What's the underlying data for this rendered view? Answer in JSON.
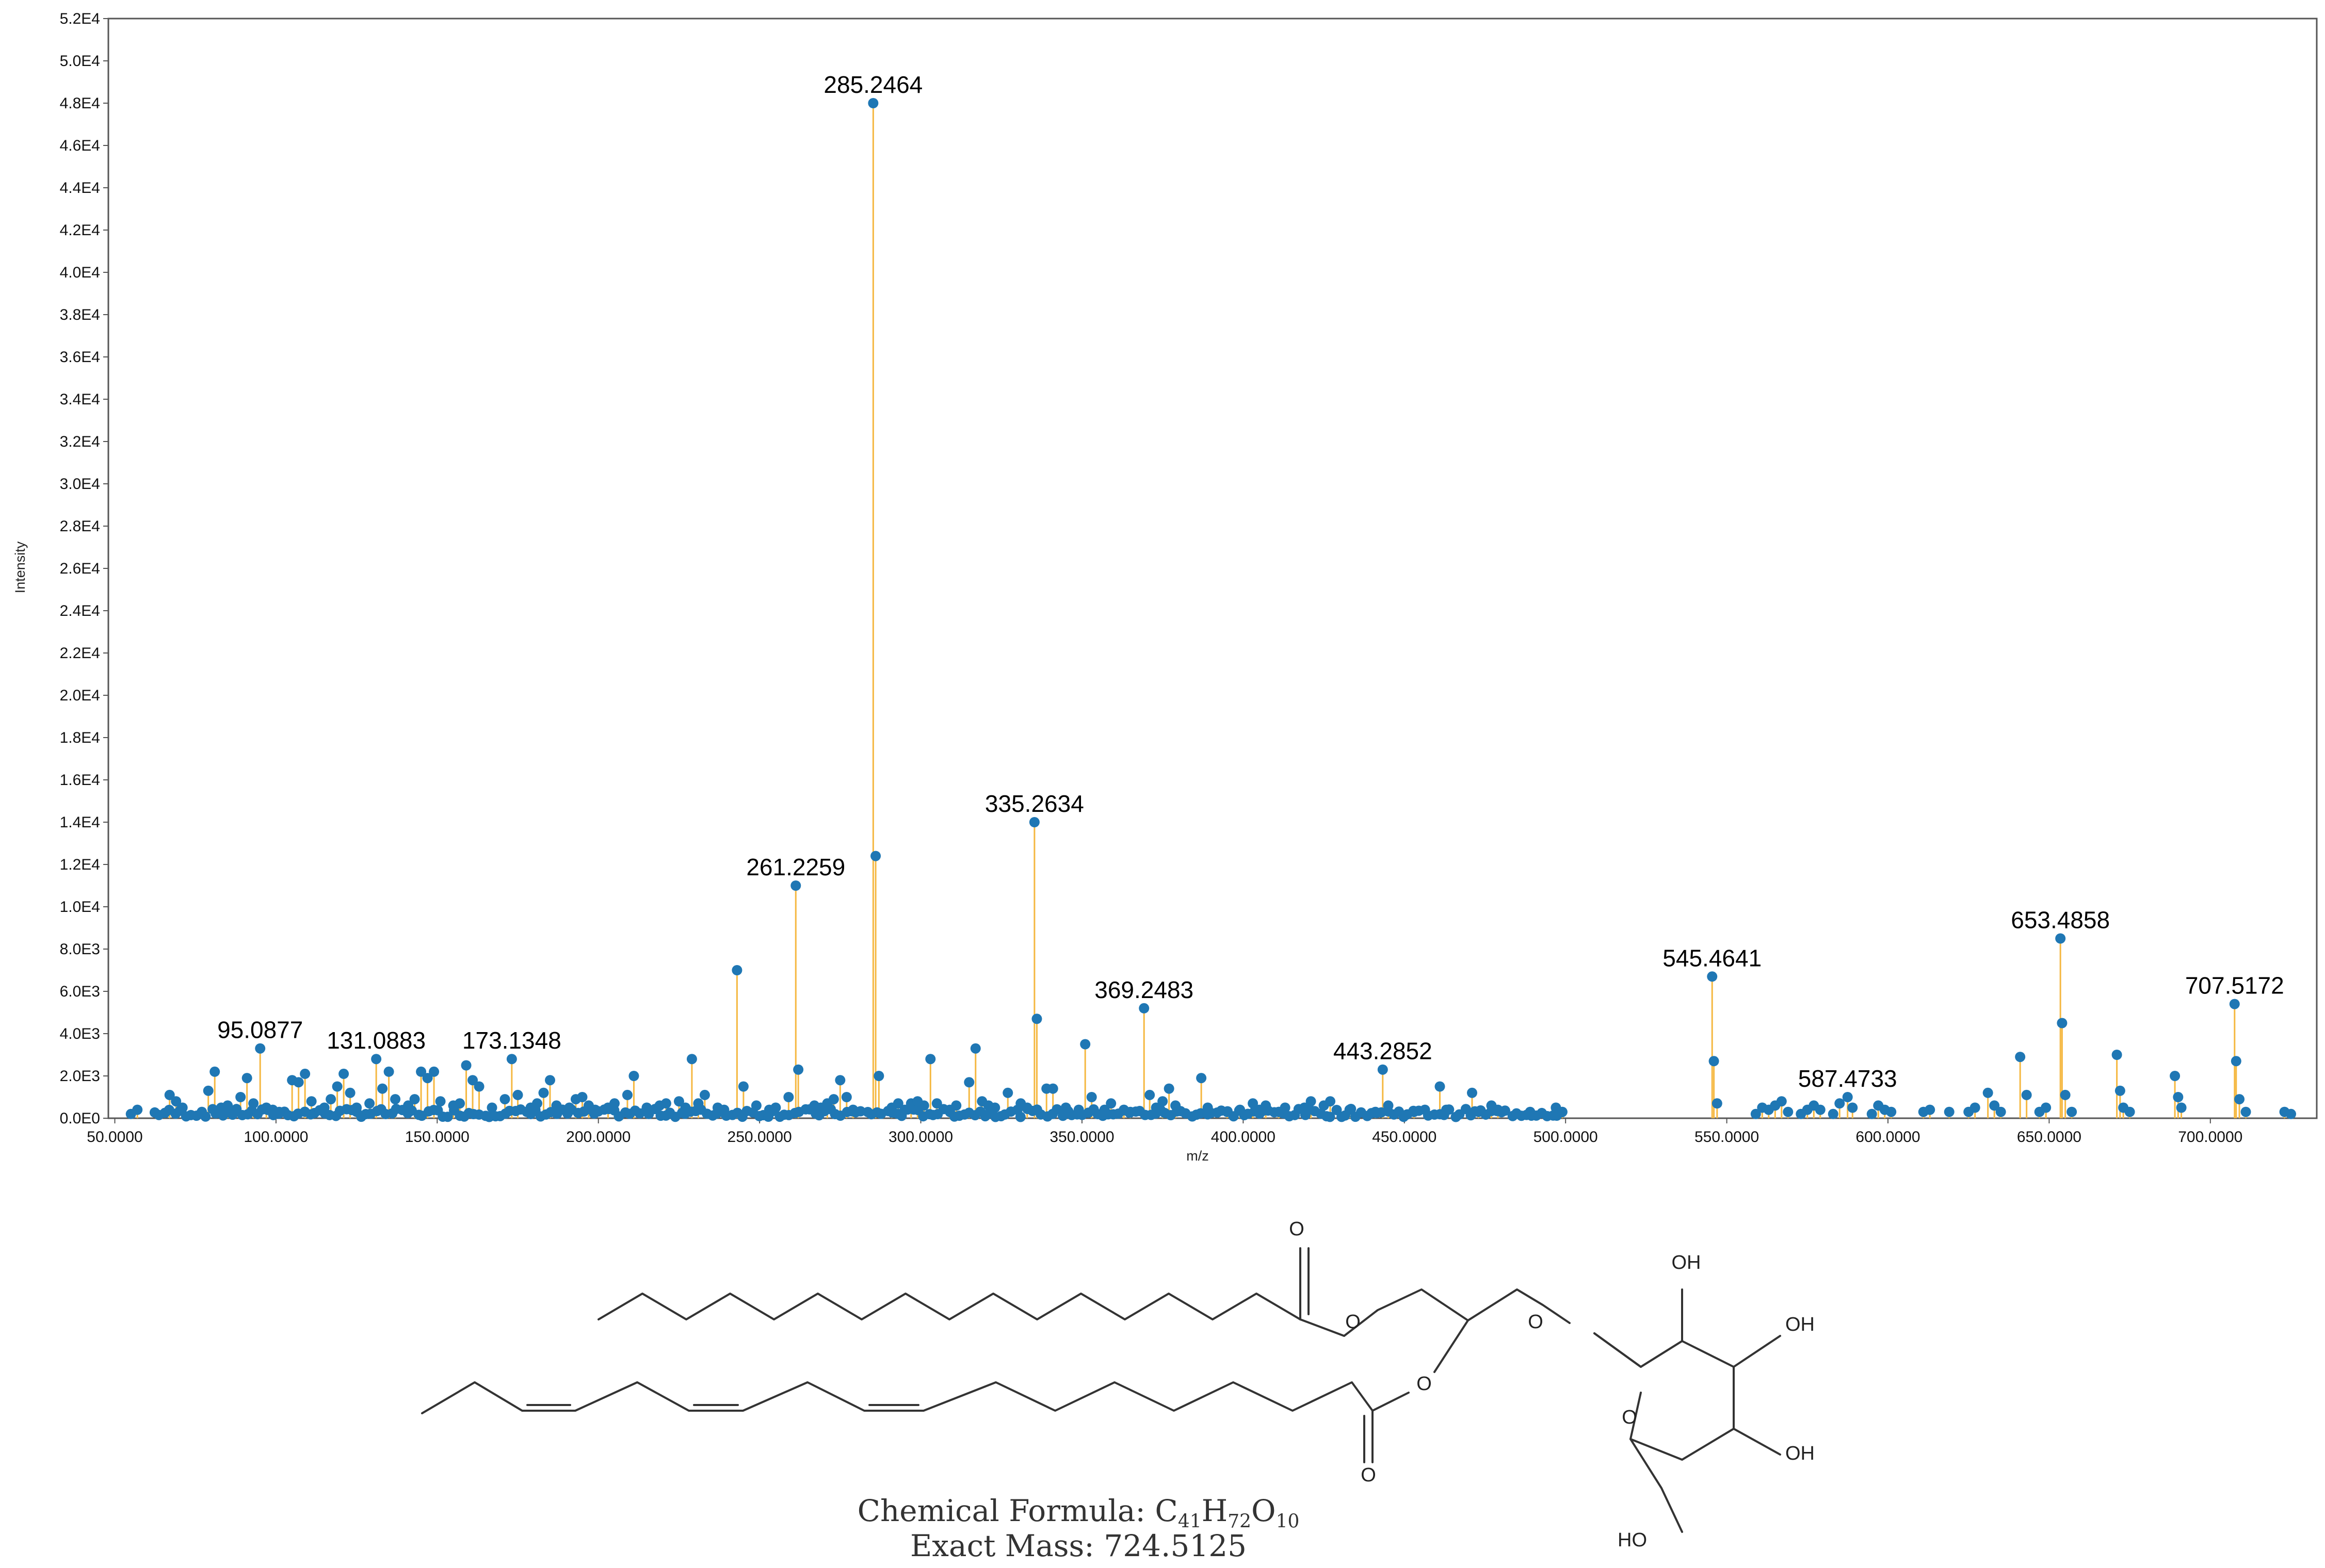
{
  "chart_data": {
    "type": "bar",
    "title": "",
    "xlabel": "m/z",
    "ylabel": "Intensity",
    "xlim": [
      48,
      733
    ],
    "ylim": [
      0,
      52000
    ],
    "x_ticks": [
      50,
      100,
      150,
      200,
      250,
      300,
      350,
      400,
      450,
      500,
      550,
      600,
      650,
      700
    ],
    "x_tick_labels": [
      "50.0000",
      "100.0000",
      "150.0000",
      "200.0000",
      "250.0000",
      "300.0000",
      "350.0000",
      "400.0000",
      "450.0000",
      "500.0000",
      "550.0000",
      "600.0000",
      "650.0000",
      "700.0000"
    ],
    "y_ticks": [
      0,
      2000,
      4000,
      6000,
      8000,
      10000,
      12000,
      14000,
      16000,
      18000,
      20000,
      22000,
      24000,
      26000,
      28000,
      30000,
      32000,
      34000,
      36000,
      38000,
      40000,
      42000,
      44000,
      46000,
      48000,
      50000,
      52000
    ],
    "y_tick_labels": [
      "0.0E0",
      "2.0E3",
      "4.0E3",
      "6.0E3",
      "8.0E3",
      "1.0E4",
      "1.2E4",
      "1.4E4",
      "1.6E4",
      "1.8E4",
      "2.0E4",
      "2.2E4",
      "2.4E4",
      "2.6E4",
      "2.8E4",
      "3.0E4",
      "3.2E4",
      "3.4E4",
      "3.6E4",
      "3.8E4",
      "4.0E4",
      "4.2E4",
      "4.4E4",
      "4.6E4",
      "4.8E4",
      "5.0E4",
      "5.2E4"
    ],
    "grid": false,
    "colors": {
      "stem": "#f5b841",
      "marker": "#1f77b4",
      "frame": "#555555"
    },
    "labeled_peaks": [
      {
        "mz": 95.0877,
        "intensity": 3300,
        "label": "95.0877"
      },
      {
        "mz": 131.0883,
        "intensity": 2800,
        "label": "131.0883"
      },
      {
        "mz": 173.1348,
        "intensity": 2800,
        "label": "173.1348"
      },
      {
        "mz": 261.2259,
        "intensity": 11000,
        "label": "261.2259"
      },
      {
        "mz": 285.2464,
        "intensity": 48000,
        "label": "285.2464"
      },
      {
        "mz": 335.2634,
        "intensity": 14000,
        "label": "335.2634"
      },
      {
        "mz": 369.2483,
        "intensity": 5200,
        "label": "369.2483"
      },
      {
        "mz": 443.2852,
        "intensity": 2300,
        "label": "443.2852"
      },
      {
        "mz": 545.4641,
        "intensity": 6700,
        "label": "545.4641"
      },
      {
        "mz": 587.4733,
        "intensity": 1000,
        "label": "587.4733"
      },
      {
        "mz": 653.4858,
        "intensity": 8500,
        "label": "653.4858"
      },
      {
        "mz": 707.5172,
        "intensity": 5400,
        "label": "707.5172"
      }
    ],
    "peaks": [
      [
        55,
        200
      ],
      [
        57,
        400
      ],
      [
        67,
        1100
      ],
      [
        69,
        800
      ],
      [
        71,
        500
      ],
      [
        77,
        300
      ],
      [
        79,
        1300
      ],
      [
        81,
        2200
      ],
      [
        83,
        500
      ],
      [
        85,
        600
      ],
      [
        87,
        300
      ],
      [
        89,
        1000
      ],
      [
        91,
        1900
      ],
      [
        93,
        700
      ],
      [
        95.0877,
        3300
      ],
      [
        97,
        500
      ],
      [
        99,
        400
      ],
      [
        101,
        300
      ],
      [
        105,
        1800
      ],
      [
        107,
        1700
      ],
      [
        109,
        2100
      ],
      [
        111,
        800
      ],
      [
        115,
        500
      ],
      [
        117,
        900
      ],
      [
        119,
        1500
      ],
      [
        121,
        2100
      ],
      [
        123,
        1200
      ],
      [
        125,
        500
      ],
      [
        129,
        700
      ],
      [
        131.0883,
        2800
      ],
      [
        133,
        1400
      ],
      [
        135,
        2200
      ],
      [
        137,
        900
      ],
      [
        141,
        600
      ],
      [
        143,
        900
      ],
      [
        145,
        2200
      ],
      [
        147,
        1900
      ],
      [
        149,
        2200
      ],
      [
        151,
        800
      ],
      [
        155,
        600
      ],
      [
        157,
        700
      ],
      [
        159,
        2500
      ],
      [
        161,
        1800
      ],
      [
        163,
        1500
      ],
      [
        167,
        500
      ],
      [
        171,
        900
      ],
      [
        173.1348,
        2800
      ],
      [
        175,
        1100
      ],
      [
        179,
        500
      ],
      [
        181,
        700
      ],
      [
        183,
        1200
      ],
      [
        185,
        1800
      ],
      [
        187,
        600
      ],
      [
        191,
        500
      ],
      [
        193,
        900
      ],
      [
        195,
        1000
      ],
      [
        197,
        600
      ],
      [
        199,
        400
      ],
      [
        203,
        500
      ],
      [
        205,
        700
      ],
      [
        209,
        1100
      ],
      [
        211,
        2000
      ],
      [
        215,
        500
      ],
      [
        219,
        600
      ],
      [
        221,
        700
      ],
      [
        225,
        800
      ],
      [
        227,
        500
      ],
      [
        229,
        2800
      ],
      [
        231,
        700
      ],
      [
        233,
        1100
      ],
      [
        237,
        500
      ],
      [
        239,
        400
      ],
      [
        243,
        7000
      ],
      [
        245,
        1500
      ],
      [
        249,
        600
      ],
      [
        253,
        400
      ],
      [
        255,
        500
      ],
      [
        259,
        1000
      ],
      [
        261.2259,
        11000
      ],
      [
        262,
        2300
      ],
      [
        267,
        600
      ],
      [
        269,
        500
      ],
      [
        271,
        700
      ],
      [
        273,
        900
      ],
      [
        275,
        1800
      ],
      [
        277,
        1000
      ],
      [
        279,
        400
      ],
      [
        285.2464,
        48000
      ],
      [
        286,
        12400
      ],
      [
        287,
        2000
      ],
      [
        291,
        500
      ],
      [
        293,
        700
      ],
      [
        295,
        400
      ],
      [
        297,
        700
      ],
      [
        299,
        800
      ],
      [
        301,
        600
      ],
      [
        303,
        2800
      ],
      [
        305,
        700
      ],
      [
        309,
        400
      ],
      [
        311,
        600
      ],
      [
        315,
        1700
      ],
      [
        317,
        3300
      ],
      [
        319,
        800
      ],
      [
        321,
        600
      ],
      [
        323,
        500
      ],
      [
        327,
        1200
      ],
      [
        331,
        700
      ],
      [
        333,
        500
      ],
      [
        335.2634,
        14000
      ],
      [
        336,
        4700
      ],
      [
        339,
        1400
      ],
      [
        341,
        1400
      ],
      [
        345,
        500
      ],
      [
        349,
        400
      ],
      [
        351,
        3500
      ],
      [
        353,
        1000
      ],
      [
        357,
        400
      ],
      [
        359,
        700
      ],
      [
        363,
        400
      ],
      [
        365,
        300
      ],
      [
        369.2483,
        5200
      ],
      [
        371,
        1100
      ],
      [
        373,
        500
      ],
      [
        375,
        800
      ],
      [
        377,
        1400
      ],
      [
        379,
        600
      ],
      [
        387,
        1900
      ],
      [
        389,
        500
      ],
      [
        395,
        300
      ],
      [
        399,
        400
      ],
      [
        403,
        700
      ],
      [
        405,
        400
      ],
      [
        407,
        600
      ],
      [
        411,
        300
      ],
      [
        413,
        500
      ],
      [
        419,
        500
      ],
      [
        421,
        800
      ],
      [
        425,
        600
      ],
      [
        427,
        800
      ],
      [
        433,
        400
      ],
      [
        441,
        300
      ],
      [
        443.2852,
        2300
      ],
      [
        445,
        600
      ],
      [
        453,
        300
      ],
      [
        461,
        1500
      ],
      [
        463,
        400
      ],
      [
        471,
        1200
      ],
      [
        473,
        300
      ],
      [
        477,
        600
      ],
      [
        479,
        400
      ],
      [
        489,
        300
      ],
      [
        497,
        500
      ],
      [
        499,
        300
      ],
      [
        545.4641,
        6700
      ],
      [
        546,
        2700
      ],
      [
        547,
        700
      ],
      [
        559,
        200
      ],
      [
        561,
        500
      ],
      [
        563,
        400
      ],
      [
        565,
        600
      ],
      [
        567,
        800
      ],
      [
        569,
        300
      ],
      [
        573,
        200
      ],
      [
        575,
        400
      ],
      [
        577,
        600
      ],
      [
        579,
        400
      ],
      [
        583,
        200
      ],
      [
        585,
        700
      ],
      [
        587.4733,
        1000
      ],
      [
        589,
        500
      ],
      [
        595,
        200
      ],
      [
        597,
        600
      ],
      [
        599,
        400
      ],
      [
        601,
        300
      ],
      [
        611,
        300
      ],
      [
        613,
        400
      ],
      [
        619,
        300
      ],
      [
        625,
        300
      ],
      [
        627,
        500
      ],
      [
        631,
        1200
      ],
      [
        633,
        600
      ],
      [
        635,
        300
      ],
      [
        641,
        2900
      ],
      [
        643,
        1100
      ],
      [
        647,
        300
      ],
      [
        649,
        500
      ],
      [
        653.4858,
        8500
      ],
      [
        654,
        4500
      ],
      [
        655,
        1100
      ],
      [
        657,
        300
      ],
      [
        671,
        3000
      ],
      [
        672,
        1300
      ],
      [
        673,
        500
      ],
      [
        675,
        300
      ],
      [
        689,
        2000
      ],
      [
        690,
        1000
      ],
      [
        691,
        500
      ],
      [
        707.5172,
        5400
      ],
      [
        708,
        2700
      ],
      [
        709,
        900
      ],
      [
        711,
        300
      ],
      [
        723,
        300
      ],
      [
        725,
        200
      ]
    ]
  },
  "structure": {
    "atom_labels": {
      "o_carbonyl_top": "O",
      "o_ester_top": "O",
      "o_ether": "O",
      "o_ester_bottom": "O",
      "o_carbonyl_bottom": "O",
      "o_ring": "O",
      "oh_1": "OH",
      "oh_2": "OH",
      "oh_3": "OH",
      "oh_ch2": "HO"
    },
    "formula_label": "Chemical Formula:",
    "formula_parts": [
      {
        "el": "C",
        "n": "41"
      },
      {
        "el": "H",
        "n": "72"
      },
      {
        "el": "O",
        "n": "10"
      }
    ],
    "mass_label": "Exact Mass:",
    "mass_value": "724.5125"
  }
}
